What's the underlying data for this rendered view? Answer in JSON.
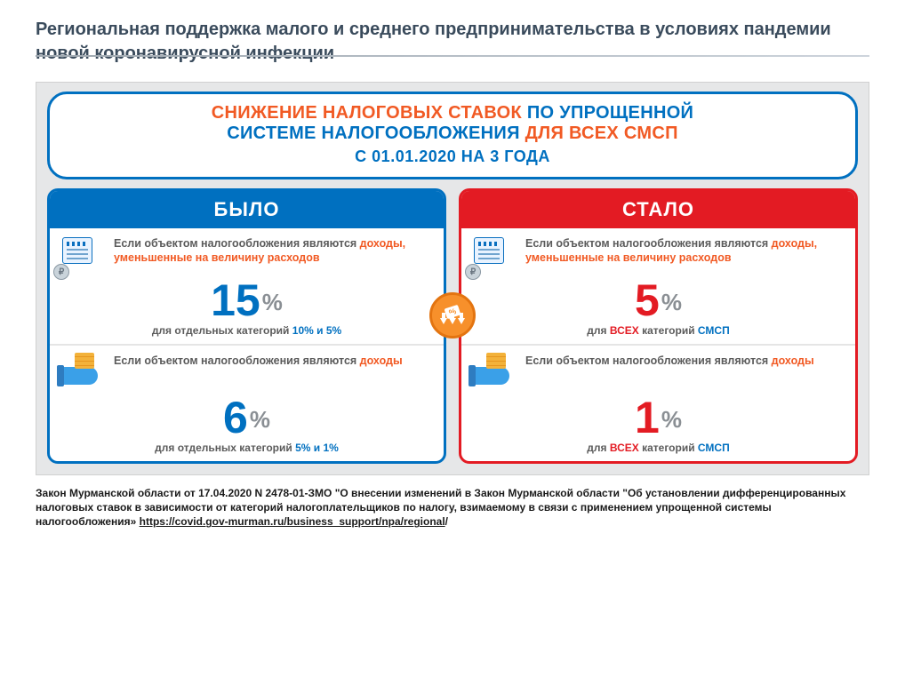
{
  "colors": {
    "title_text": "#3a4b5c",
    "panel_bg": "#e6e7e8",
    "headline_border": "#0070c0",
    "blue": "#0070c0",
    "orange": "#f15a24",
    "red": "#e31b23",
    "gray_text": "#5b5b5b",
    "gray_pct": "#8a8f94",
    "badge_bg": "#f7902b"
  },
  "page_title": "Региональная поддержка  малого и среднего предпринимательства в условиях пандемии новой коронавирусной инфекции",
  "headline": {
    "line1_a": "СНИЖЕНИЕ НАЛОГОВЫХ СТАВОК ",
    "line1_b": "ПО УПРОЩЕННОЙ",
    "line2_a": "СИСТЕМЕ НАЛОГООБЛОЖЕНИЯ ",
    "line2_b": "ДЛЯ ВСЕХ СМСП",
    "sub": "С 01.01.2020 НА 3 ГОДА"
  },
  "left": {
    "header": "БЫЛО",
    "border_color": "#0070c0",
    "header_bg": "#0070c0",
    "num_color": "#0070c0",
    "cells": [
      {
        "desc_pre": "Если объектом налогообложения являются ",
        "desc_hl": "доходы, уменьшенные на величину расходов",
        "hl_color": "#f15a24",
        "value": "15",
        "foot_pre": "для отдельных категорий ",
        "foot_hl": "10% и 5%",
        "foot_hl_color": "#0070c0"
      },
      {
        "desc_pre": "Если объектом налогообложения являются ",
        "desc_hl": "доходы",
        "hl_color": "#f15a24",
        "value": "6",
        "foot_pre": "для отдельных категорий ",
        "foot_hl": "5% и 1%",
        "foot_hl_color": "#0070c0"
      }
    ]
  },
  "right": {
    "header": "СТАЛО",
    "border_color": "#e31b23",
    "header_bg": "#e31b23",
    "num_color": "#e31b23",
    "cells": [
      {
        "desc_pre": "Если объектом налогообложения являются ",
        "desc_hl": "доходы, уменьшенные на величину расходов",
        "hl_color": "#f15a24",
        "value": "5",
        "foot_pre": "для ",
        "foot_mid": "ВСЕХ",
        "foot_mid_color": "#e31b23",
        "foot_post": " категорий ",
        "foot_hl": "СМСП",
        "foot_hl_color": "#0070c0"
      },
      {
        "desc_pre": "Если объектом налогообложения являются ",
        "desc_hl": "доходы",
        "hl_color": "#f15a24",
        "value": "1",
        "foot_pre": "для ",
        "foot_mid": "ВСЕХ",
        "foot_mid_color": "#e31b23",
        "foot_post": " категорий ",
        "foot_hl": "СМСП",
        "foot_hl_color": "#0070c0"
      }
    ]
  },
  "footer": {
    "text_a": "Закон Мурманской области от 17.04.2020 N 2478-01-ЗМО \"О внесении изменений в Закон Мурманской области \"Об установлении дифференцированных налоговых ставок в зависимости от категорий налогоплательщиков по налогу, взимаемому в связи с применением упрощенной системы налогообложения»    ",
    "link": "https://covid.gov-murman.ru/business_support/npa/regional",
    "text_b": "/"
  }
}
